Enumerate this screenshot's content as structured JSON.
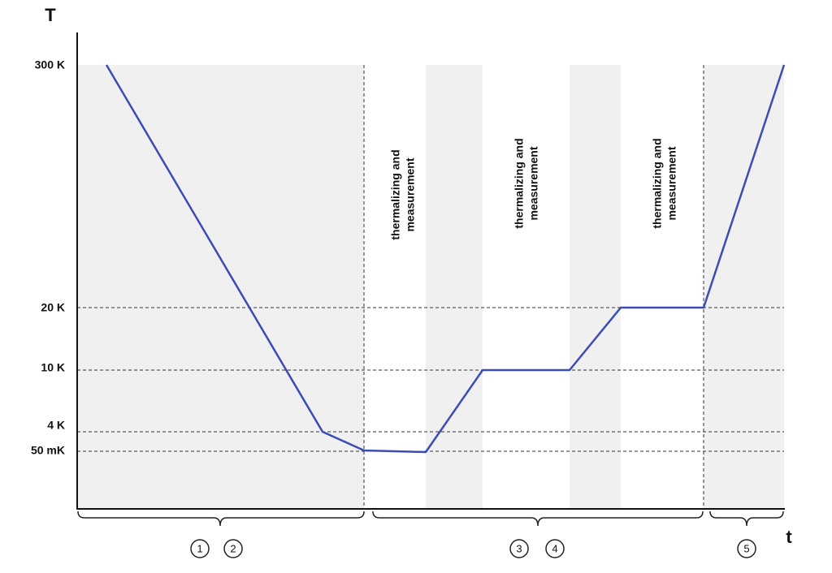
{
  "axes": {
    "y_label": "T",
    "x_label": "t"
  },
  "y_labels": [
    "300 K",
    "20 K",
    "10 K",
    "4 K",
    "50 mK"
  ],
  "annotations": [
    [
      "thermalizing and",
      "measurement"
    ],
    [
      "thermalizing and",
      "measurement"
    ],
    [
      "thermalizing and",
      "measurement"
    ]
  ],
  "steps": [
    "1",
    "2",
    "3",
    "4",
    "5"
  ]
}
